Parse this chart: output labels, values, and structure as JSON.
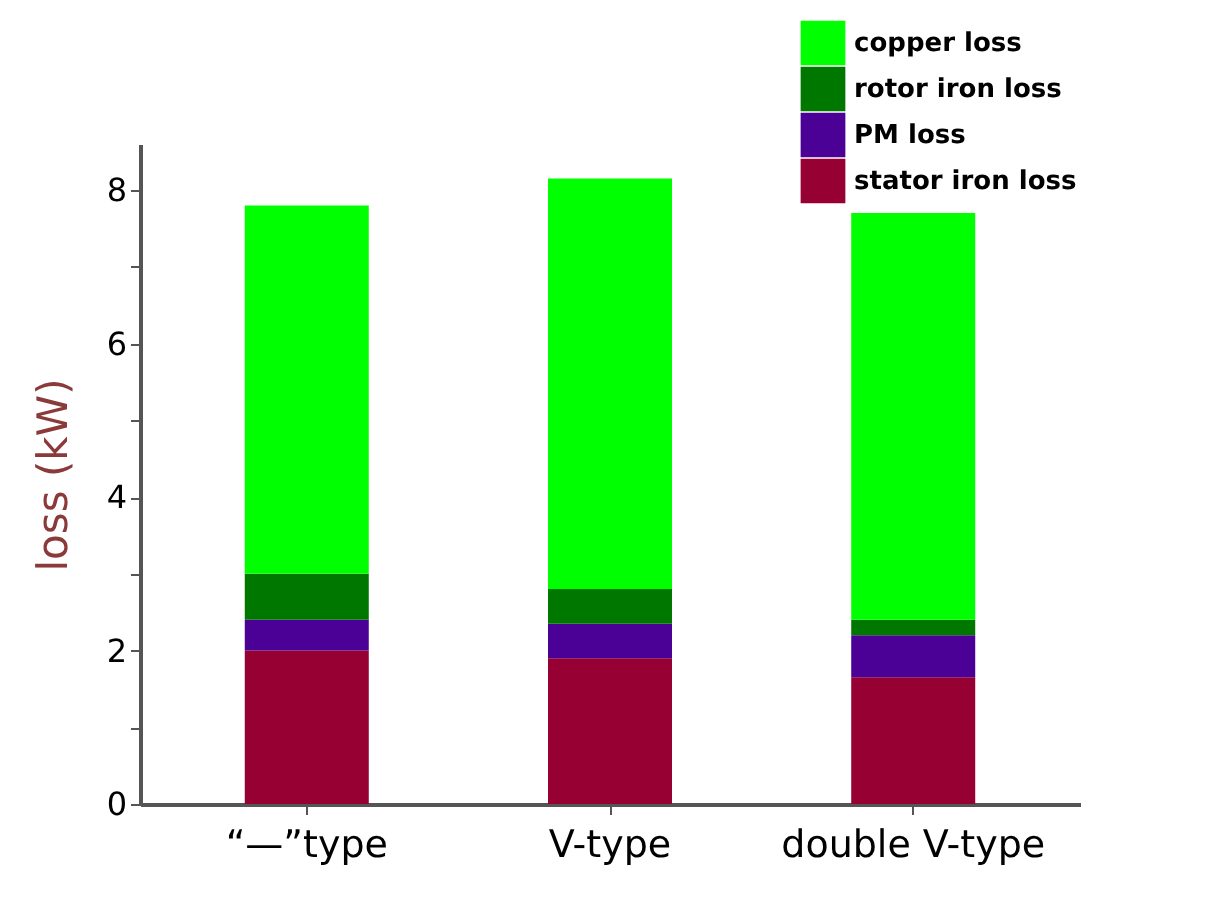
{
  "chart_data": {
    "type": "bar",
    "stacked": true,
    "ylabel": "loss (kW)",
    "categories": [
      "“—”type",
      "V-type",
      "double V-type"
    ],
    "series": [
      {
        "name": "stator iron loss",
        "color": "#960032",
        "values": [
          2.0,
          1.9,
          1.65
        ]
      },
      {
        "name": "PM loss",
        "color": "#4b0096",
        "values": [
          0.4,
          0.45,
          0.55
        ]
      },
      {
        "name": "rotor iron loss",
        "color": "#007800",
        "values": [
          0.6,
          0.45,
          0.2
        ]
      },
      {
        "name": "copper loss",
        "color": "#00ff00",
        "values": [
          4.8,
          5.35,
          5.3
        ]
      }
    ],
    "ylim": [
      0,
      8.6
    ],
    "yticks": [
      0,
      {
        "value": 1,
        "label": null
      },
      2,
      {
        "value": 3,
        "label": null
      },
      4,
      {
        "value": 5,
        "label": null
      },
      6,
      {
        "value": 7,
        "label": null
      },
      8
    ],
    "grid": false,
    "legend": "top right"
  }
}
